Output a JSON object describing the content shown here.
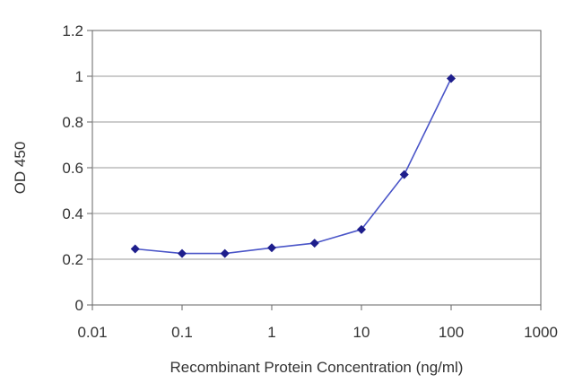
{
  "chart_data": {
    "type": "line",
    "title": "",
    "xlabel": "Recombinant Protein Concentration (ng/ml)",
    "ylabel": "OD 450",
    "x_scale": "log",
    "xlim": [
      0.01,
      1000
    ],
    "ylim": [
      0,
      1.2
    ],
    "x_ticks": [
      "0.01",
      "0.1",
      "1",
      "10",
      "100",
      "1000"
    ],
    "y_ticks": [
      "0",
      "0.2",
      "0.4",
      "0.6",
      "0.8",
      "1",
      "1.2"
    ],
    "grid": "horizontal",
    "legend": "none",
    "series": [
      {
        "x": [
          0.03,
          0.1,
          0.3,
          1,
          3,
          10,
          30,
          100
        ],
        "y": [
          0.245,
          0.225,
          0.225,
          0.25,
          0.27,
          0.33,
          0.57,
          0.99
        ],
        "color": "#2e2e9a"
      }
    ]
  },
  "colors": {
    "line": "#4a55c8",
    "marker": "#1e1e8c",
    "grid": "#9a9a9a",
    "axis": "#666666"
  }
}
